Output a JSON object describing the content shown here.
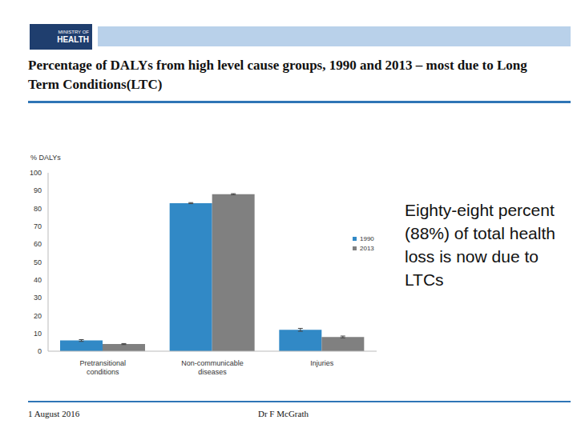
{
  "header": {
    "logo_lines": [
      "MINISTRY OF",
      "HEALTH"
    ],
    "title": "Percentage of DALYs from high level cause groups, 1990 and 2013 – most due to Long Term Conditions(LTC)"
  },
  "chart_data": {
    "type": "bar",
    "y_label": "% DALYs",
    "categories": [
      "Pretransitional conditions",
      "Non-communicable diseases",
      "Injuries"
    ],
    "series": [
      {
        "name": "1990",
        "color": "#3189c6",
        "values": [
          6,
          83,
          12
        ],
        "errors": [
          0.5,
          0.3,
          0.8
        ]
      },
      {
        "name": "2013",
        "color": "#808080",
        "values": [
          4,
          88,
          8
        ],
        "errors": [
          0.3,
          0.3,
          0.5
        ]
      }
    ],
    "ylim": [
      0,
      100
    ],
    "yticks": [
      0,
      10,
      20,
      30,
      40,
      50,
      60,
      70,
      80,
      90,
      100
    ],
    "grid": false
  },
  "annotation": "Eighty-eight percent (88%) of total health loss is now due to LTCs",
  "footer": {
    "date": "1 August 2016",
    "author": "Dr F McGrath"
  }
}
